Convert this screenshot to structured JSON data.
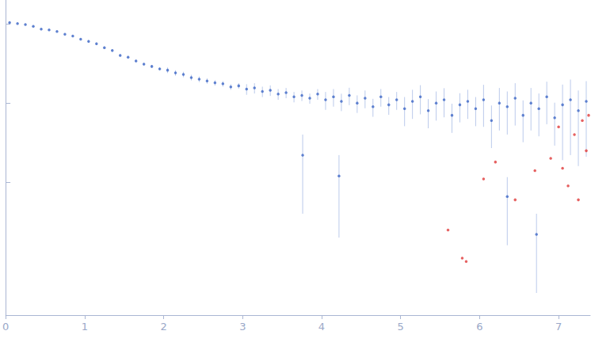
{
  "chart_data": {
    "type": "scatter",
    "log": "y",
    "grid": false,
    "tick_labels": "x",
    "xlim": [
      0,
      7.4
    ],
    "xticks": [
      0,
      1,
      2,
      3,
      4,
      5,
      6,
      7
    ],
    "ylim": [
      0.00021,
      2
    ],
    "yticks": [
      0.01,
      0.1,
      1
    ],
    "series": [
      {
        "color": "#3d67c6",
        "marker": "circle",
        "x": [
          0.05,
          0.15,
          0.25,
          0.35,
          0.45,
          0.55,
          0.65,
          0.75,
          0.85,
          0.95,
          1.05,
          1.15,
          1.25,
          1.35,
          1.45,
          1.55,
          1.65,
          1.75,
          1.85,
          1.95,
          2.05,
          2.15,
          2.25,
          2.35,
          2.45,
          2.55,
          2.65,
          2.75,
          2.85,
          2.95,
          3.05,
          3.15,
          3.25,
          3.35,
          3.45,
          3.55,
          3.65,
          3.75,
          3.85,
          3.95,
          4.05,
          4.15,
          4.25,
          4.35,
          4.45,
          4.55,
          4.65,
          4.75,
          4.85,
          4.95,
          5.05,
          5.15,
          5.25,
          5.35,
          5.45,
          5.55,
          5.65,
          5.75,
          5.85,
          5.95,
          6.05,
          6.15,
          6.25,
          6.35,
          6.45,
          6.55,
          6.65,
          6.75,
          6.85,
          6.95,
          7.05,
          7.15,
          7.25,
          7.35,
          3.76,
          4.22,
          6.35,
          6.72
        ],
        "values": [
          1.04,
          1.01,
          0.98,
          0.93,
          0.86,
          0.84,
          0.8,
          0.74,
          0.7,
          0.64,
          0.6,
          0.56,
          0.5,
          0.46,
          0.4,
          0.38,
          0.34,
          0.31,
          0.29,
          0.27,
          0.26,
          0.24,
          0.23,
          0.21,
          0.2,
          0.19,
          0.18,
          0.175,
          0.16,
          0.165,
          0.15,
          0.155,
          0.14,
          0.145,
          0.13,
          0.135,
          0.12,
          0.125,
          0.115,
          0.13,
          0.11,
          0.12,
          0.105,
          0.125,
          0.1,
          0.115,
          0.09,
          0.12,
          0.095,
          0.11,
          0.085,
          0.105,
          0.12,
          0.08,
          0.1,
          0.11,
          0.07,
          0.095,
          0.105,
          0.085,
          0.11,
          0.06,
          0.1,
          0.09,
          0.115,
          0.07,
          0.1,
          0.085,
          0.12,
          0.065,
          0.095,
          0.11,
          0.08,
          0.105,
          0.022,
          0.012,
          0.0066,
          0.0022
        ],
        "errors": [
          0.021,
          0.02,
          0.02,
          0.019,
          0.017,
          0.017,
          0.016,
          0.015,
          0.014,
          0.013,
          0.024,
          0.022,
          0.02,
          0.018,
          0.016,
          0.015,
          0.014,
          0.012,
          0.012,
          0.011,
          0.021,
          0.019,
          0.018,
          0.017,
          0.016,
          0.015,
          0.014,
          0.014,
          0.013,
          0.013,
          0.023,
          0.023,
          0.021,
          0.022,
          0.02,
          0.02,
          0.018,
          0.019,
          0.017,
          0.02,
          0.028,
          0.03,
          0.026,
          0.031,
          0.025,
          0.029,
          0.023,
          0.03,
          0.024,
          0.028,
          0.034,
          0.042,
          0.048,
          0.032,
          0.04,
          0.044,
          0.028,
          0.038,
          0.042,
          0.034,
          0.06,
          0.033,
          0.055,
          0.05,
          0.063,
          0.038,
          0.055,
          0.047,
          0.066,
          0.036,
          0.076,
          0.088,
          0.064,
          0.084,
          0.018,
          0.01,
          0.005,
          0.0018
        ]
      },
      {
        "color": "#e03a3a",
        "marker": "circle",
        "x": [
          5.6,
          5.78,
          5.83,
          6.05,
          6.2,
          6.45,
          6.7,
          6.9,
          7.0,
          7.05,
          7.12,
          7.2,
          7.25,
          7.3,
          7.35,
          7.38
        ],
        "values": [
          0.0025,
          0.0011,
          0.001,
          0.011,
          0.018,
          0.006,
          0.014,
          0.02,
          0.05,
          0.015,
          0.009,
          0.04,
          0.006,
          0.06,
          0.025,
          0.07
        ]
      }
    ]
  }
}
